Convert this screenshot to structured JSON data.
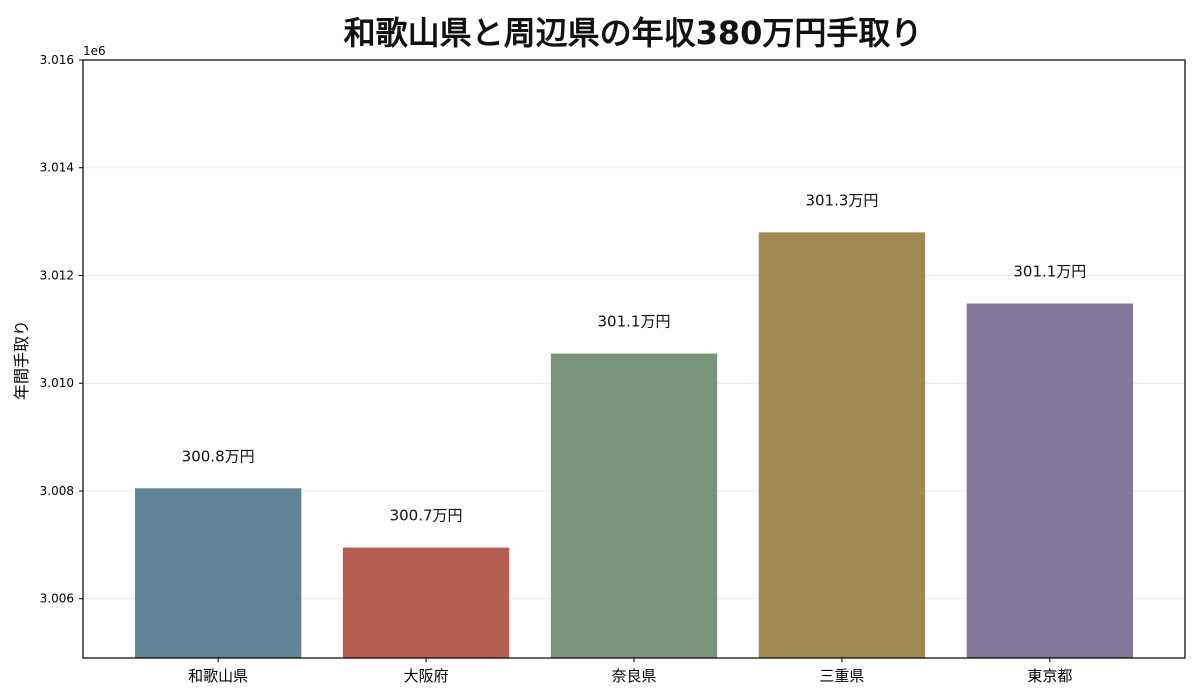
{
  "chart_data": {
    "type": "bar",
    "title": "和歌山県と周辺県の年収380万円手取り",
    "xlabel": "",
    "ylabel": "年間手取り",
    "y_offset_label": "1e6",
    "categories": [
      "和歌山県",
      "大阪府",
      "奈良県",
      "三重県",
      "東京都"
    ],
    "values": [
      3008050,
      3006950,
      3010550,
      3012800,
      3011480
    ],
    "data_labels": [
      "300.8万円",
      "300.7万円",
      "301.1万円",
      "301.3万円",
      "301.1万円"
    ],
    "colors": [
      "#5f8497",
      "#b55f50",
      "#799479",
      "#a38951",
      "#81779c"
    ],
    "ylim": [
      3004900,
      3016000
    ],
    "yticks": [
      3.006,
      3.008,
      3.01,
      3.012,
      3.014,
      3.016
    ],
    "ytick_labels": [
      "3.006",
      "3.008",
      "3.010",
      "3.012",
      "3.014",
      "3.016"
    ],
    "grid": true,
    "legend": false
  }
}
